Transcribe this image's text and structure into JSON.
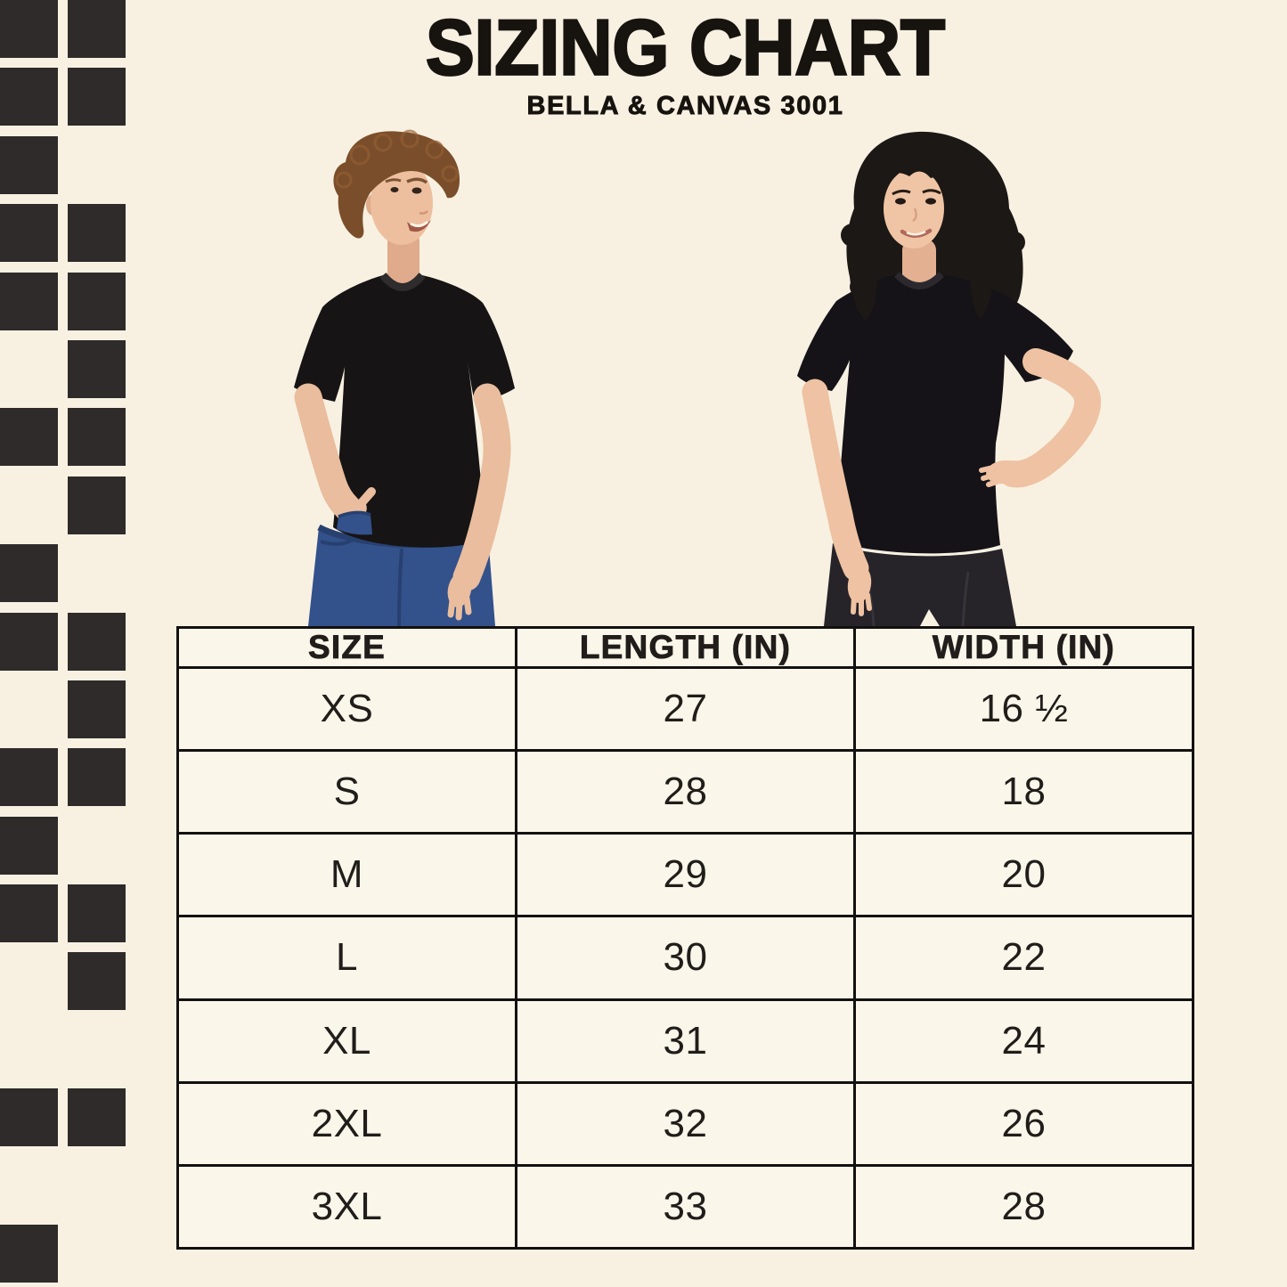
{
  "header": {
    "title": "SIZING CHART",
    "subtitle": "BELLA & CANVAS 3001"
  },
  "models": {
    "left": "male model wearing black crew-neck tee and blue jeans",
    "right": "female model wearing black crew-neck tee and black jeans"
  },
  "size_table": {
    "columns": [
      "SIZE",
      "LENGTH (IN)",
      "WIDTH (IN)"
    ],
    "rows": [
      [
        "XS",
        "27",
        "16 ½"
      ],
      [
        "S",
        "28",
        "18"
      ],
      [
        "M",
        "29",
        "20"
      ],
      [
        "L",
        "30",
        "22"
      ],
      [
        "XL",
        "31",
        "24"
      ],
      [
        "2XL",
        "32",
        "26"
      ],
      [
        "3XL",
        "33",
        "28"
      ]
    ]
  },
  "decor": {
    "pattern_rows": [
      [
        1,
        1
      ],
      [
        1,
        1
      ],
      [
        1,
        0
      ],
      [
        1,
        1
      ],
      [
        1,
        1
      ],
      [
        0,
        1
      ],
      [
        1,
        1
      ],
      [
        0,
        1
      ],
      [
        1,
        0
      ],
      [
        1,
        1
      ],
      [
        0,
        1
      ],
      [
        1,
        1
      ],
      [
        1,
        0
      ],
      [
        1,
        1
      ],
      [
        0,
        1
      ],
      [
        0,
        0
      ],
      [
        1,
        1
      ],
      [
        0,
        0
      ],
      [
        1,
        0
      ]
    ],
    "square_color": "#2e2b2a"
  },
  "colors": {
    "background": "#f8f1e2",
    "table_background": "#fbf6ea",
    "line": "#131110",
    "text": "#17130f",
    "tshirt": "#161414",
    "denim": "#33518b"
  }
}
